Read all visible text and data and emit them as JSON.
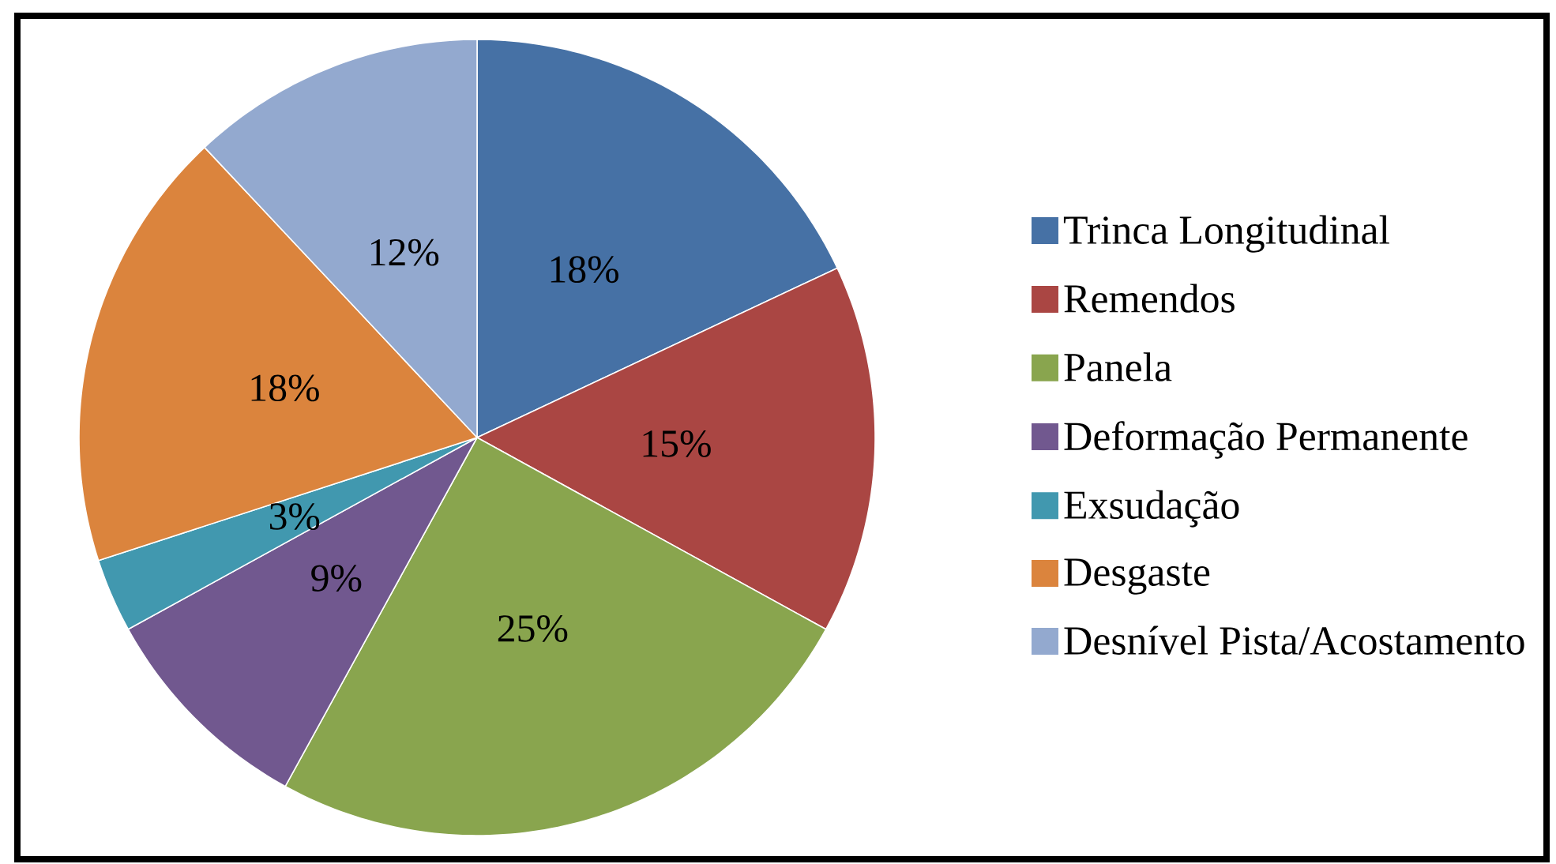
{
  "chart_data": {
    "type": "pie",
    "categories": [
      "Trinca Longitudinal",
      "Remendos",
      "Panela",
      "Deformação Permanente",
      "Exsudação",
      "Desgaste",
      "Desnível Pista/Acostamento"
    ],
    "values": [
      18,
      15,
      25,
      9,
      3,
      18,
      12
    ],
    "colors": [
      "#4671a5",
      "#aa4643",
      "#89a54e",
      "#71588f",
      "#4198af",
      "#db843d",
      "#93a9cf"
    ],
    "value_labels": [
      "18%",
      "15%",
      "25%",
      "9%",
      "3%",
      "18%",
      "12%"
    ],
    "legend": "right"
  }
}
